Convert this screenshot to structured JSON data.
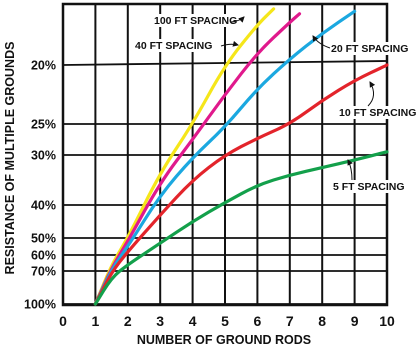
{
  "chart_data": {
    "type": "line",
    "xlabel": "NUMBER OF GROUND RODS",
    "ylabel": "RESISTANCE OF MULTIPLE GROUNDS",
    "xlim": [
      0,
      10
    ],
    "x_ticks": [
      "0",
      "1",
      "2",
      "3",
      "4",
      "5",
      "6",
      "7",
      "8",
      "9",
      "10"
    ],
    "y_scale": "reciprocal",
    "y_ticks": [
      {
        "label": "20%",
        "value": 20
      },
      {
        "label": "25%",
        "value": 25
      },
      {
        "label": "30%",
        "value": 30
      },
      {
        "label": "40%",
        "value": 40
      },
      {
        "label": "50%",
        "value": 50
      },
      {
        "label": "60%",
        "value": 60
      },
      {
        "label": "70%",
        "value": 70
      },
      {
        "label": "100%",
        "value": 100
      }
    ],
    "grid": true,
    "series": [
      {
        "name": "100 FT SPACING",
        "color": "#f5e61a",
        "points": [
          [
            1,
            100
          ],
          [
            1.5,
            66
          ],
          [
            2,
            50
          ],
          [
            3,
            33.5
          ],
          [
            4,
            25
          ],
          [
            5,
            20
          ],
          [
            6,
            16.7
          ],
          [
            6.5,
            15.4
          ]
        ]
      },
      {
        "name": "40 FT SPACING",
        "color": "#e0198c",
        "points": [
          [
            1,
            100
          ],
          [
            1.5,
            68
          ],
          [
            2,
            52
          ],
          [
            3,
            35.5
          ],
          [
            4,
            27.5
          ],
          [
            5,
            22.5
          ],
          [
            6,
            19
          ],
          [
            7,
            16.5
          ],
          [
            7.3,
            15.8
          ]
        ]
      },
      {
        "name": "20 FT SPACING",
        "color": "#1ba8e0",
        "points": [
          [
            1,
            100
          ],
          [
            1.5,
            69
          ],
          [
            2,
            55
          ],
          [
            3,
            38
          ],
          [
            4,
            30.5
          ],
          [
            5,
            25.5
          ],
          [
            6,
            22
          ],
          [
            7,
            19.5
          ],
          [
            8,
            17.4
          ],
          [
            9,
            15.6
          ]
        ]
      },
      {
        "name": "10 FT SPACING",
        "color": "#e3242b",
        "points": [
          [
            1,
            100
          ],
          [
            1.5,
            71
          ],
          [
            2,
            58
          ],
          [
            3,
            43
          ],
          [
            4,
            35
          ],
          [
            5,
            30
          ],
          [
            6,
            27.3
          ],
          [
            7,
            25
          ],
          [
            8,
            23
          ],
          [
            9,
            21.3
          ],
          [
            10,
            20
          ]
        ]
      },
      {
        "name": "5 FT SPACING",
        "color": "#13a04b",
        "points": [
          [
            1,
            100
          ],
          [
            1.5,
            76
          ],
          [
            2,
            66
          ],
          [
            3,
            53
          ],
          [
            4,
            45
          ],
          [
            5,
            39.5
          ],
          [
            6,
            36
          ],
          [
            7,
            34
          ],
          [
            8,
            32.5
          ],
          [
            9,
            31
          ],
          [
            10,
            29.5
          ]
        ]
      }
    ]
  }
}
